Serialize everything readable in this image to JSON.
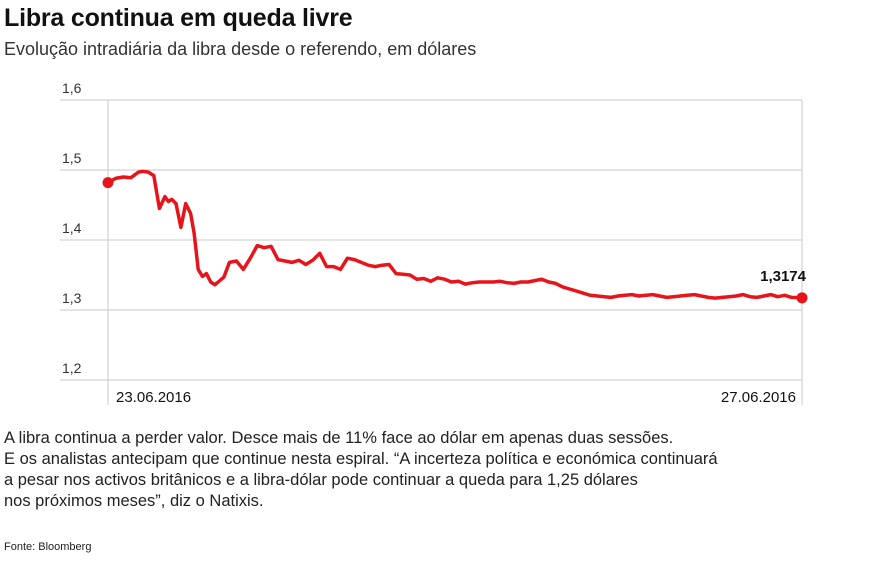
{
  "header": {
    "title": "Libra continua em queda livre",
    "subtitle": "Evolução intradiária da libra desde o referendo, em dólares"
  },
  "chart_data": {
    "type": "line",
    "title": "Libra continua em queda livre",
    "subtitle": "Evolução intradiária da libra desde o referendo, em dólares",
    "xlabel": "",
    "ylabel": "",
    "ylim": [
      1.2,
      1.6
    ],
    "y_ticks": [
      "1,6",
      "1,5",
      "1,4",
      "1,3",
      "1,2"
    ],
    "y_tick_values": [
      1.6,
      1.5,
      1.4,
      1.3,
      1.2
    ],
    "x_labels": [
      "23.06.2016",
      "27.06.2016"
    ],
    "grid": true,
    "line_color": "#e8141b",
    "end_label": "1,3174",
    "series": [
      {
        "x": [
          0.0,
          0.011,
          0.022,
          0.033,
          0.044,
          0.05,
          0.058,
          0.066,
          0.074,
          0.082,
          0.087,
          0.092,
          0.098,
          0.105,
          0.112,
          0.119,
          0.124,
          0.13,
          0.136,
          0.142,
          0.148,
          0.154,
          0.16,
          0.167,
          0.175,
          0.185,
          0.195,
          0.205,
          0.215,
          0.225,
          0.235,
          0.245,
          0.255,
          0.265,
          0.275,
          0.285,
          0.295,
          0.305,
          0.315,
          0.325,
          0.335,
          0.345,
          0.355,
          0.365,
          0.375,
          0.385,
          0.395,
          0.405,
          0.415,
          0.425,
          0.435,
          0.445,
          0.455,
          0.465,
          0.475,
          0.485,
          0.495,
          0.505,
          0.515,
          0.525,
          0.535,
          0.545,
          0.555,
          0.565,
          0.575,
          0.585,
          0.595,
          0.605,
          0.615,
          0.625,
          0.635,
          0.645,
          0.655,
          0.665,
          0.675,
          0.685,
          0.695,
          0.705,
          0.715,
          0.725,
          0.735,
          0.745,
          0.755,
          0.765,
          0.775,
          0.785,
          0.795,
          0.805,
          0.815,
          0.825,
          0.835,
          0.845,
          0.855,
          0.865,
          0.875,
          0.885,
          0.895,
          0.905,
          0.915,
          0.925,
          0.935,
          0.945,
          0.955,
          0.965,
          0.975,
          0.985,
          1.0
        ],
        "y": [
          1.482,
          1.488,
          1.49,
          1.489,
          1.497,
          1.498,
          1.497,
          1.492,
          1.445,
          1.462,
          1.455,
          1.458,
          1.452,
          1.418,
          1.452,
          1.438,
          1.41,
          1.358,
          1.348,
          1.352,
          1.34,
          1.336,
          1.341,
          1.347,
          1.368,
          1.37,
          1.358,
          1.374,
          1.392,
          1.389,
          1.391,
          1.372,
          1.37,
          1.368,
          1.371,
          1.365,
          1.371,
          1.381,
          1.362,
          1.362,
          1.358,
          1.374,
          1.372,
          1.368,
          1.364,
          1.362,
          1.364,
          1.365,
          1.352,
          1.351,
          1.35,
          1.344,
          1.345,
          1.341,
          1.346,
          1.344,
          1.34,
          1.341,
          1.337,
          1.339,
          1.34,
          1.34,
          1.34,
          1.341,
          1.339,
          1.338,
          1.34,
          1.34,
          1.342,
          1.344,
          1.34,
          1.338,
          1.333,
          1.33,
          1.327,
          1.324,
          1.321,
          1.32,
          1.319,
          1.318,
          1.32,
          1.321,
          1.322,
          1.32,
          1.321,
          1.322,
          1.32,
          1.318,
          1.319,
          1.32,
          1.321,
          1.322,
          1.32,
          1.318,
          1.317,
          1.318,
          1.319,
          1.32,
          1.322,
          1.319,
          1.318,
          1.32,
          1.322,
          1.319,
          1.321,
          1.318,
          1.3174
        ]
      }
    ]
  },
  "body": {
    "lines": [
      "A libra continua a perder valor. Desce mais de 11% face ao dólar em apenas duas sessões.",
      "E os analistas antecipam que  continue nesta espiral. “A incerteza política e económica continuará",
      "a pesar nos activos britânicos e a libra-dólar pode continuar a queda para 1,25 dólares",
      "nos próximos meses”, diz o Natixis."
    ]
  },
  "source": "Fonte: Bloomberg"
}
